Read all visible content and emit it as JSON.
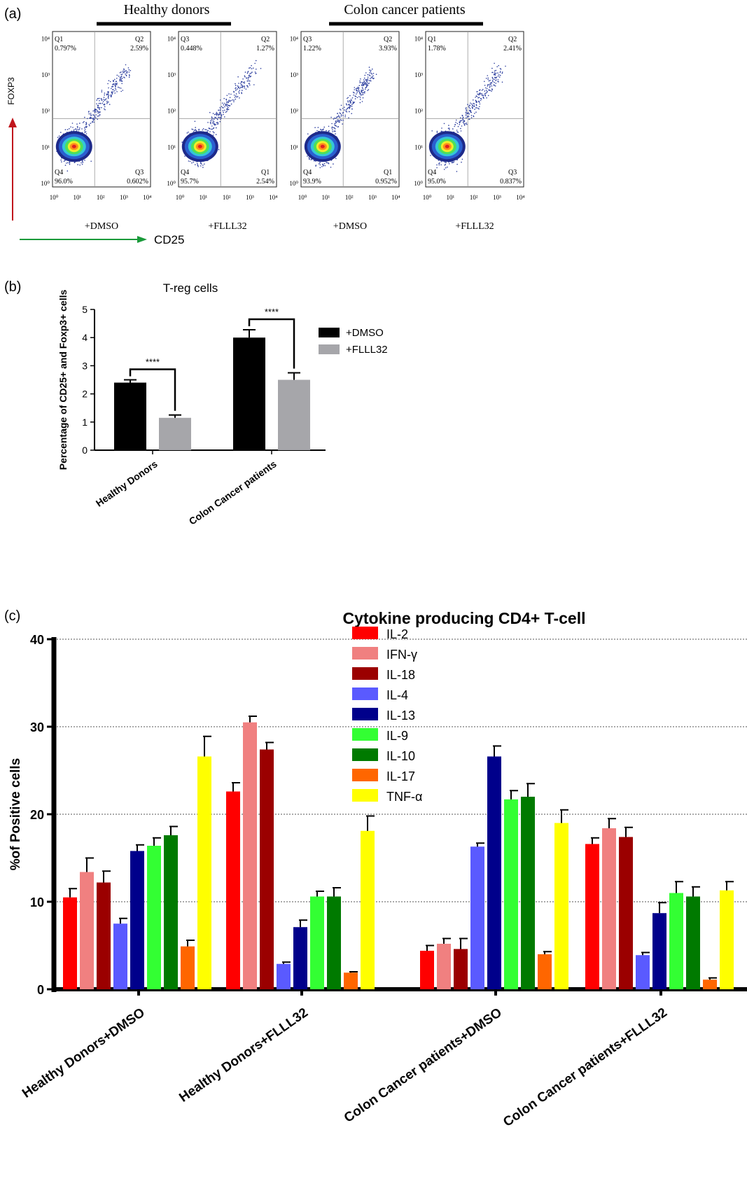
{
  "panel_a": {
    "label": "(a)",
    "group_titles": [
      "Healthy donors",
      "Colon cancer patients"
    ],
    "y_axis_label": "FOXP3",
    "x_axis_label": "CD25",
    "tick_labels": [
      "10⁰",
      "10¹",
      "10²",
      "10³",
      "10⁴"
    ],
    "plots": [
      {
        "condition": "+DMSO",
        "quadrants": {
          "top_left": [
            "Q1",
            "0.797%"
          ],
          "top_right": [
            "Q2",
            "2.59%"
          ],
          "bottom_left": [
            "Q4",
            "96.0%"
          ],
          "bottom_right": [
            "Q3",
            "0.602%"
          ]
        }
      },
      {
        "condition": "+FLLL32",
        "quadrants": {
          "top_left": [
            "Q3",
            "0.448%"
          ],
          "top_right": [
            "Q2",
            "1.27%"
          ],
          "bottom_left": [
            "Q4",
            "95.7%"
          ],
          "bottom_right": [
            "Q1",
            "2.54%"
          ]
        }
      },
      {
        "condition": "+DMSO",
        "quadrants": {
          "top_left": [
            "Q3",
            "1.22%"
          ],
          "top_right": [
            "Q2",
            "3.93%"
          ],
          "bottom_left": [
            "Q4",
            "93.9%"
          ],
          "bottom_right": [
            "Q1",
            "0.952%"
          ]
        }
      },
      {
        "condition": "+FLLL32",
        "quadrants": {
          "top_left": [
            "Q1",
            "1.78%"
          ],
          "top_right": [
            "Q2",
            "2.41%"
          ],
          "bottom_left": [
            "Q4",
            "95.0%"
          ],
          "bottom_right": [
            "Q3",
            "0.837%"
          ]
        }
      }
    ],
    "colors": {
      "y_arrow": "#c0161c",
      "x_arrow": "#1a9a3a"
    }
  },
  "chart_data": [
    {
      "panel_label": "(b)",
      "type": "bar",
      "title": "T-reg cells",
      "ylabel": "Percentage of CD25+ and Foxp3+ cells",
      "xlabel": "",
      "categories": [
        "Healthy Donors",
        "Colon Cancer patients"
      ],
      "series": [
        {
          "name": "+DMSO",
          "values": [
            2.4,
            4.0
          ],
          "errors": [
            0.1,
            0.28
          ],
          "color": "#000000"
        },
        {
          "name": "+FLLL32",
          "values": [
            1.15,
            2.5
          ],
          "errors": [
            0.1,
            0.25
          ],
          "color": "#a6a6aa"
        }
      ],
      "significance": [
        "****",
        "****"
      ],
      "ylim": [
        0,
        5
      ],
      "yticks": [
        0,
        1,
        2,
        3,
        4,
        5
      ],
      "legend": "right"
    },
    {
      "panel_label": "(c)",
      "type": "bar",
      "title": "Cytokine producing CD4+ T-cell",
      "ylabel": "%of Positive cells",
      "xlabel": "",
      "categories": [
        "Healthy Donors+DMSO",
        "Healthy Donors+FLLL32",
        "Colon Cancer patients+DMSO",
        "Colon Cancer patients+FLLL32"
      ],
      "series": [
        {
          "name": "IL-2",
          "values": [
            10.5,
            22.6,
            4.4,
            16.6
          ],
          "errors": [
            1.0,
            1.0,
            0.6,
            0.7
          ],
          "color": "#ff0000"
        },
        {
          "name": "IFN-γ",
          "values": [
            13.4,
            30.5,
            5.2,
            18.4
          ],
          "errors": [
            1.6,
            0.7,
            0.6,
            1.1
          ],
          "color": "#f08080"
        },
        {
          "name": "IL-18",
          "values": [
            12.2,
            27.4,
            4.6,
            17.4
          ],
          "errors": [
            1.3,
            0.8,
            1.2,
            1.1
          ],
          "color": "#9b0000"
        },
        {
          "name": "IL-4",
          "values": [
            7.5,
            2.9,
            16.3,
            3.9
          ],
          "errors": [
            0.6,
            0.2,
            0.4,
            0.3
          ],
          "color": "#5a5aff"
        },
        {
          "name": "IL-13",
          "values": [
            15.8,
            7.1,
            26.6,
            8.7
          ],
          "errors": [
            0.7,
            0.8,
            1.2,
            1.2
          ],
          "color": "#00008b"
        },
        {
          "name": "IL-9",
          "values": [
            16.4,
            10.6,
            21.7,
            11.0
          ],
          "errors": [
            0.9,
            0.6,
            1.0,
            1.3
          ],
          "color": "#33ff33"
        },
        {
          "name": "IL-10",
          "values": [
            17.6,
            10.6,
            22.0,
            10.6
          ],
          "errors": [
            1.0,
            1.0,
            1.5,
            1.1
          ],
          "color": "#007a00"
        },
        {
          "name": "IL-17",
          "values": [
            4.9,
            1.9,
            4.0,
            1.1
          ],
          "errors": [
            0.7,
            0.1,
            0.3,
            0.2
          ],
          "color": "#ff6600"
        },
        {
          "name": "TNF-α",
          "values": [
            26.6,
            18.1,
            19.0,
            11.3
          ],
          "errors": [
            2.3,
            1.7,
            1.5,
            1.0
          ],
          "color": "#ffff00"
        }
      ],
      "ylim": [
        0,
        40
      ],
      "yticks": [
        0,
        10,
        20,
        30,
        40
      ],
      "grid": true,
      "legend": "top"
    }
  ]
}
